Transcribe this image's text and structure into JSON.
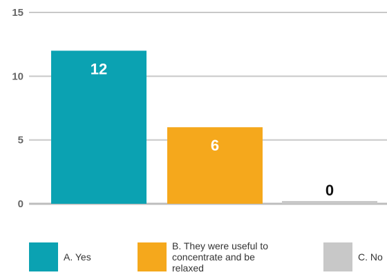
{
  "chart_data": {
    "type": "bar",
    "categories": [
      "A. Yes",
      "B. They were useful to concentrate and be relaxed",
      "C. No"
    ],
    "values": [
      12,
      6,
      0
    ],
    "colors": [
      "#0ba2b2",
      "#f5a81c",
      "#c8c8c8"
    ],
    "data_labels": [
      "12",
      "6",
      "0"
    ],
    "data_label_colors": [
      "#ffffff",
      "#ffffff",
      "#111111"
    ],
    "ylim": [
      0,
      15
    ],
    "yticks": [
      0,
      5,
      10,
      15
    ],
    "ytick_labels": [
      "0",
      "5",
      "10",
      "15"
    ],
    "grid": true,
    "legend_position": "bottom",
    "title": "",
    "xlabel": "",
    "ylabel": ""
  },
  "legend": {
    "items": [
      {
        "label": "A. Yes",
        "color": "#0ba2b2"
      },
      {
        "label": "B. They were useful to concentrate and be relaxed",
        "color": "#f5a81c"
      },
      {
        "label": "C. No",
        "color": "#c8c8c8"
      }
    ]
  }
}
